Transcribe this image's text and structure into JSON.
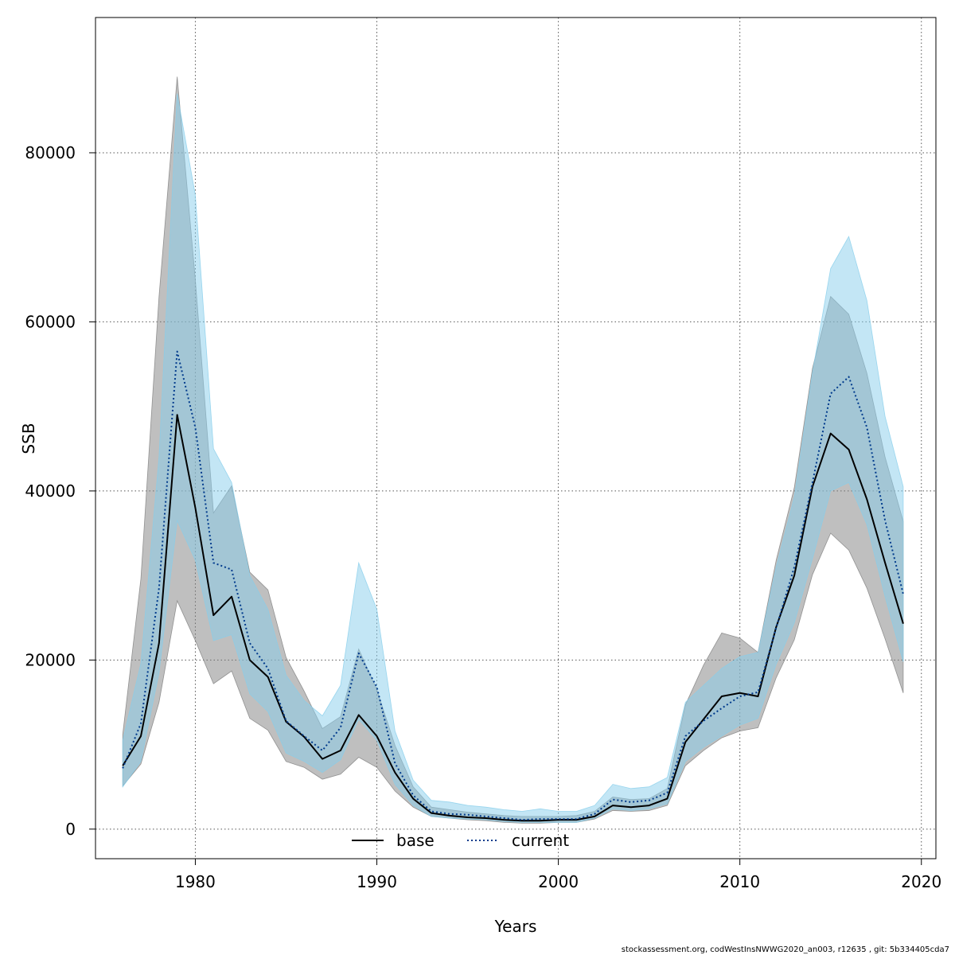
{
  "chart_data": {
    "type": "line",
    "xlabel": "Years",
    "ylabel": "SSB",
    "xlim": [
      1974.5,
      2020.8
    ],
    "ylim": [
      -3500,
      96000
    ],
    "xticks": [
      1980,
      1990,
      2000,
      2010,
      2020
    ],
    "yticks": [
      0,
      20000,
      40000,
      60000,
      80000
    ],
    "xtick_labels": [
      "1980",
      "1990",
      "2000",
      "2010",
      "2020"
    ],
    "ytick_labels": [
      "0",
      "20000",
      "40000",
      "60000",
      "80000"
    ],
    "grid": true,
    "legend_position": "bottom-center",
    "footer": "stockassessment.org, codWestInsNWWG2020_an003, r12635 , git: 5b334405cda7",
    "x": [
      1976,
      1977,
      1978,
      1979,
      1980,
      1981,
      1982,
      1983,
      1984,
      1985,
      1986,
      1987,
      1988,
      1989,
      1990,
      1991,
      1992,
      1993,
      1994,
      1995,
      1996,
      1997,
      1998,
      1999,
      2000,
      2001,
      2002,
      2003,
      2004,
      2005,
      2006,
      2007,
      2008,
      2009,
      2010,
      2011,
      2012,
      2013,
      2014,
      2015,
      2016,
      2017,
      2018,
      2019
    ],
    "series": [
      {
        "name": "base",
        "color": "#000000",
        "line_style": "solid",
        "band_color": "#808080",
        "values": [
          7500,
          11000,
          22000,
          49000,
          38000,
          25300,
          27500,
          20000,
          18000,
          12700,
          10900,
          8300,
          9300,
          13500,
          11000,
          6700,
          3600,
          1900,
          1600,
          1400,
          1300,
          1100,
          1000,
          1000,
          1100,
          1100,
          1500,
          2800,
          2600,
          2800,
          3600,
          10300,
          13000,
          15700,
          16100,
          15700,
          23900,
          30000,
          40500,
          46800,
          44900,
          39000,
          31500,
          24300
        ],
        "lower": [
          5100,
          7700,
          15000,
          27000,
          22300,
          17200,
          18700,
          13100,
          11700,
          8000,
          7300,
          5900,
          6500,
          8500,
          7300,
          4500,
          2600,
          1500,
          1300,
          1100,
          1000,
          800,
          700,
          700,
          800,
          800,
          1200,
          2200,
          2100,
          2200,
          2800,
          7500,
          9300,
          10800,
          11600,
          12000,
          17900,
          22400,
          30100,
          35000,
          33000,
          28500,
          22500,
          16100
        ],
        "upper": [
          11200,
          29600,
          63000,
          89000,
          65000,
          37400,
          40600,
          30400,
          28300,
          20300,
          16300,
          11900,
          13300,
          21300,
          16500,
          9900,
          5000,
          2600,
          2300,
          2000,
          1800,
          1600,
          1500,
          1500,
          1500,
          1600,
          2100,
          3800,
          3500,
          3600,
          4800,
          14700,
          19400,
          23200,
          22600,
          20900,
          31800,
          40400,
          54500,
          63000,
          60900,
          53900,
          44000,
          36400
        ]
      },
      {
        "name": "current",
        "color": "#003a8c",
        "line_style": "dotted",
        "band_color": "#87ceeb",
        "values": [
          7200,
          12500,
          28500,
          56500,
          47500,
          31500,
          30700,
          22000,
          19000,
          12800,
          11000,
          9300,
          12000,
          20800,
          16800,
          7800,
          4000,
          2100,
          1800,
          1700,
          1500,
          1300,
          1100,
          1200,
          1200,
          1200,
          1800,
          3500,
          3200,
          3400,
          4300,
          11000,
          12800,
          14300,
          15700,
          16200,
          23800,
          31000,
          41000,
          51500,
          53500,
          47500,
          36500,
          27800
        ],
        "lower": [
          5000,
          8000,
          18500,
          36500,
          31800,
          22300,
          23000,
          16000,
          13900,
          9000,
          8000,
          6700,
          8200,
          13000,
          10500,
          5300,
          2800,
          1500,
          1300,
          1200,
          1100,
          900,
          800,
          800,
          800,
          800,
          1300,
          2400,
          2200,
          2400,
          3000,
          8000,
          9700,
          11000,
          12300,
          13100,
          19500,
          24400,
          32000,
          40000,
          41000,
          36000,
          27500,
          19800
        ],
        "upper": [
          10500,
          19600,
          44000,
          87000,
          75000,
          45000,
          41000,
          30000,
          26000,
          18200,
          15200,
          13400,
          17000,
          31500,
          26000,
          11600,
          5800,
          3400,
          3200,
          2800,
          2600,
          2300,
          2100,
          2400,
          2100,
          2100,
          2800,
          5300,
          4800,
          5000,
          6100,
          15000,
          17000,
          19000,
          20400,
          20900,
          31000,
          39300,
          54000,
          66300,
          70100,
          62500,
          48800,
          40500
        ]
      }
    ]
  }
}
